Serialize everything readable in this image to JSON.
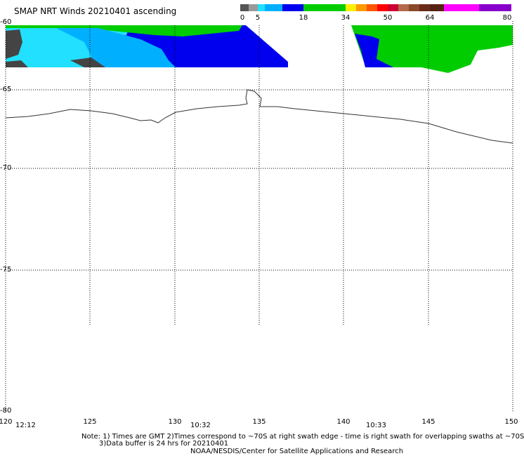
{
  "title": "SMAP NRT Winds 20210401 ascending",
  "colorbar": {
    "ticks": [
      "0",
      "5",
      "18",
      "34",
      "50",
      "64",
      "80"
    ],
    "segments": [
      {
        "from": 0,
        "to": 12,
        "color": "#555555"
      },
      {
        "from": 12,
        "to": 25,
        "color": "#9a9a9a"
      },
      {
        "from": 25,
        "to": 35,
        "color": "#22e0ff"
      },
      {
        "from": 35,
        "to": 60,
        "color": "#00b0ff"
      },
      {
        "from": 60,
        "to": 90,
        "color": "#0000ee"
      },
      {
        "from": 90,
        "to": 150,
        "color": "#00cc00"
      },
      {
        "from": 150,
        "to": 165,
        "color": "#ffee00"
      },
      {
        "from": 165,
        "to": 180,
        "color": "#ff9900"
      },
      {
        "from": 180,
        "to": 195,
        "color": "#ff5500"
      },
      {
        "from": 195,
        "to": 210,
        "color": "#ff0000"
      },
      {
        "from": 210,
        "to": 225,
        "color": "#cc0033"
      },
      {
        "from": 225,
        "to": 240,
        "color": "#b26a4a"
      },
      {
        "from": 240,
        "to": 255,
        "color": "#8a4a2a"
      },
      {
        "from": 255,
        "to": 270,
        "color": "#6a2a1a"
      },
      {
        "from": 270,
        "to": 290,
        "color": "#552211"
      },
      {
        "from": 290,
        "to": 340,
        "color": "#ff00ff"
      },
      {
        "from": 340,
        "to": 386,
        "color": "#8800cc"
      }
    ],
    "tick_offsets": [
      0,
      25,
      90,
      150,
      210,
      270,
      386
    ]
  },
  "lat_labels": [
    "-60",
    "-65",
    "-70",
    "-75",
    "-80"
  ],
  "lon_labels": [
    "120",
    "125",
    "130",
    "135",
    "140",
    "145",
    "150"
  ],
  "times": [
    "12:12",
    "10:32",
    "10:33"
  ],
  "notes": [
    "Note: 1) Times are GMT 2)Times correspond to ~70S at right swath edge - time is right swath for overlapping swaths at ~70S",
    "3)Data buffer is 24 hrs for 20210401",
    "NOAA/NESDIS/Center for Satellite Applications and Research"
  ],
  "colors": {
    "land": "#ffffff",
    "coast": "#000000",
    "grid": "#000000"
  }
}
